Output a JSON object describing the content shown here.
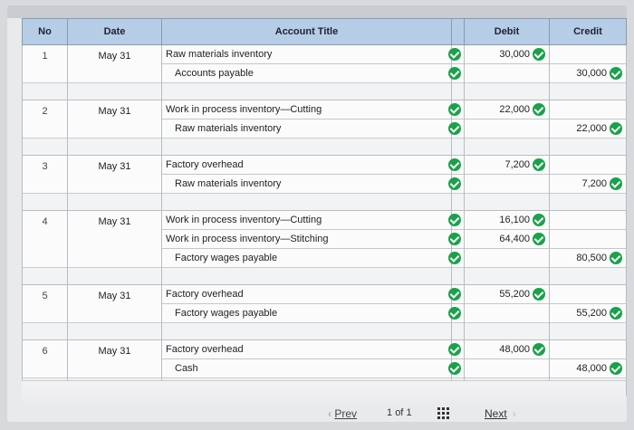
{
  "table": {
    "headers": {
      "no": "No",
      "date": "Date",
      "title": "Account Title",
      "debit": "Debit",
      "credit": "Credit"
    },
    "entries": [
      {
        "no": "1",
        "date": "May 31",
        "lines": [
          {
            "account": "Raw materials inventory",
            "debit": "30,000",
            "credit": ""
          },
          {
            "account": "Accounts payable",
            "debit": "",
            "credit": "30,000"
          }
        ]
      },
      {
        "no": "2",
        "date": "May 31",
        "lines": [
          {
            "account": "Work in process inventory—Cutting",
            "debit": "22,000",
            "credit": ""
          },
          {
            "account": "Raw materials inventory",
            "debit": "",
            "credit": "22,000"
          }
        ]
      },
      {
        "no": "3",
        "date": "May 31",
        "lines": [
          {
            "account": "Factory overhead",
            "debit": "7,200",
            "credit": ""
          },
          {
            "account": "Raw materials inventory",
            "debit": "",
            "credit": "7,200"
          }
        ]
      },
      {
        "no": "4",
        "date": "May 31",
        "lines": [
          {
            "account": "Work in process inventory—Cutting",
            "debit": "16,100",
            "credit": ""
          },
          {
            "account": "Work in process inventory—Stitching",
            "debit": "64,400",
            "credit": ""
          },
          {
            "account": "Factory wages payable",
            "debit": "",
            "credit": "80,500"
          }
        ]
      },
      {
        "no": "5",
        "date": "May 31",
        "lines": [
          {
            "account": "Factory overhead",
            "debit": "55,200",
            "credit": ""
          },
          {
            "account": "Factory wages payable",
            "debit": "",
            "credit": "55,200"
          }
        ]
      },
      {
        "no": "6",
        "date": "May 31",
        "lines": [
          {
            "account": "Factory overhead",
            "debit": "48,000",
            "credit": ""
          },
          {
            "account": "Cash",
            "debit": "",
            "credit": "48,000"
          }
        ]
      }
    ]
  },
  "pagination": {
    "prev": "Prev",
    "page": "1",
    "of": "of",
    "total": "1",
    "next": "Next"
  },
  "colors": {
    "header_bg": "#b6cde8",
    "check_green": "#1aa24a"
  }
}
